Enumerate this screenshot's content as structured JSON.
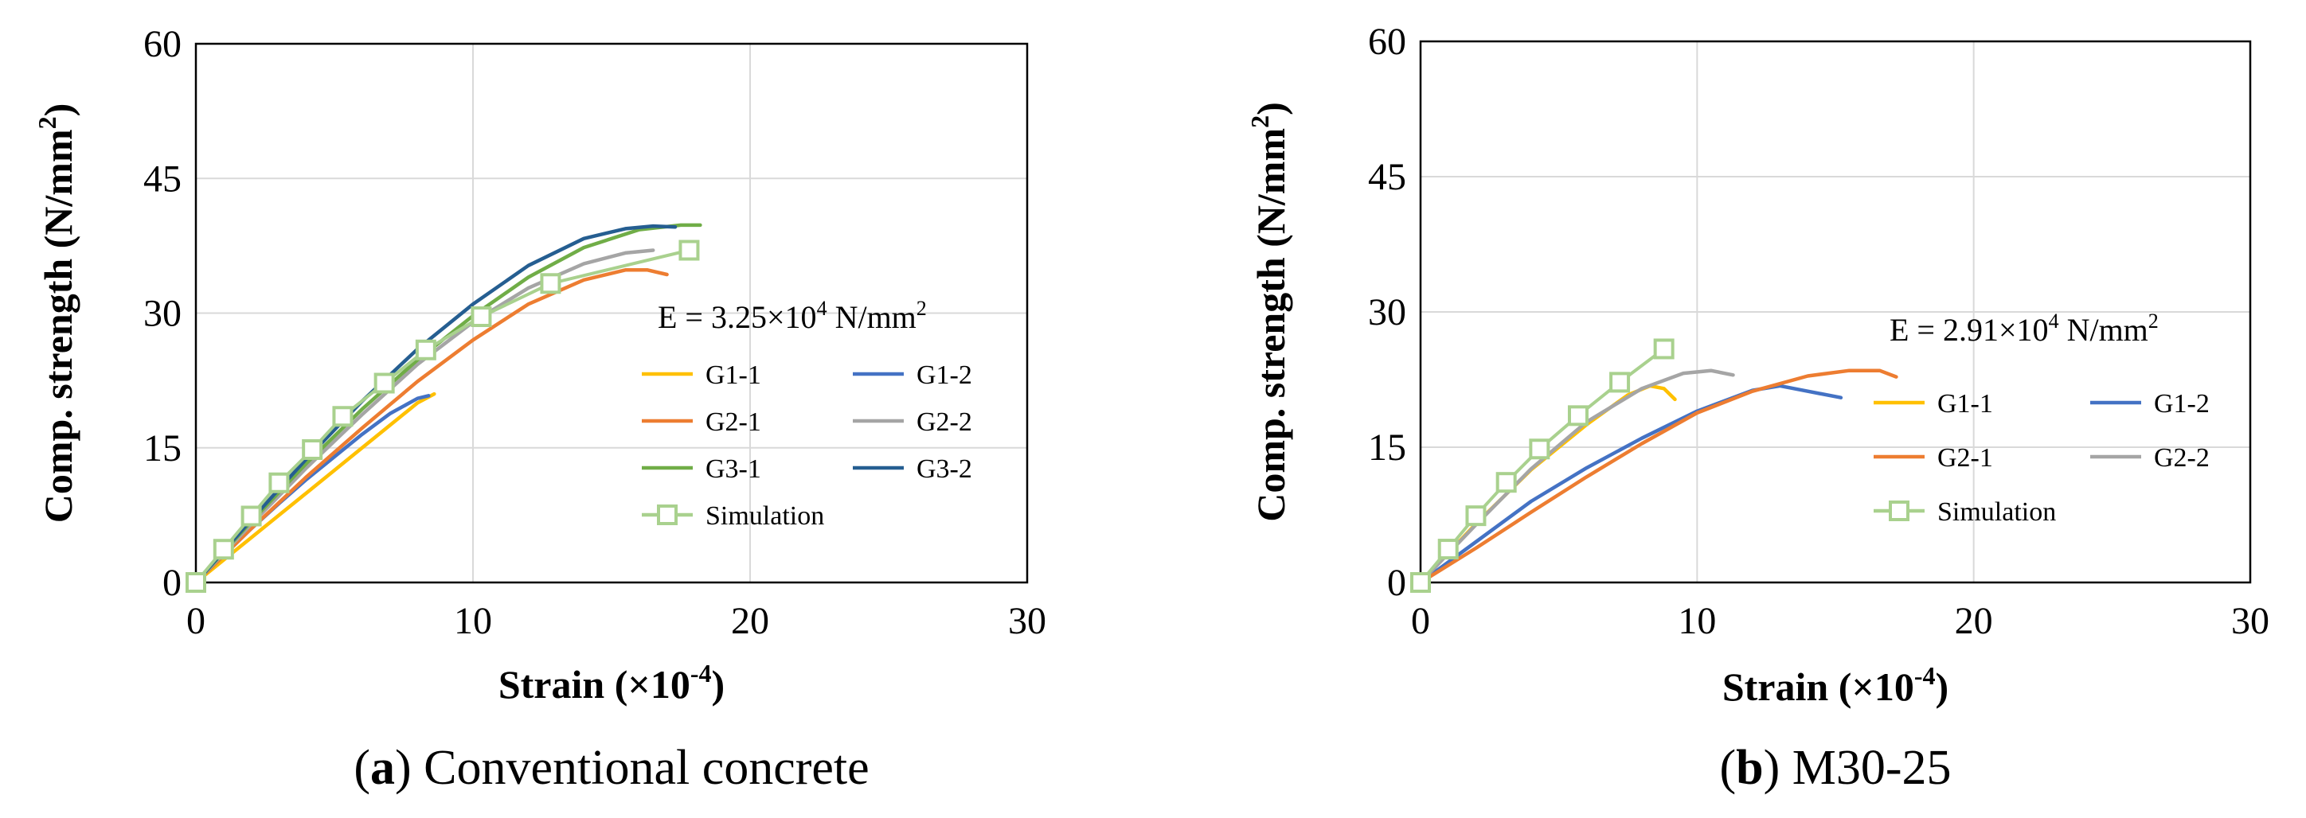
{
  "chart_data": [
    {
      "type": "line",
      "panel_letter": "a",
      "caption_text": " Conventional concrete",
      "xlabel": "Strain (×10",
      "xlabel_exp": "-4",
      "xlabel_tail": ")",
      "ylabel": "Comp. strength (N/mm",
      "ylabel_exp": "2",
      "ylabel_tail": ")",
      "xlim": [
        0,
        30
      ],
      "ylim": [
        0,
        60
      ],
      "xticks": [
        0,
        10,
        20,
        30
      ],
      "yticks": [
        0,
        15,
        30,
        45,
        60
      ],
      "xtick_labels": [
        "0",
        "10",
        "20",
        "30"
      ],
      "ytick_labels": [
        "0",
        "15",
        "30",
        "45",
        "60"
      ],
      "grid": true,
      "legend_position": "right, below annotation",
      "annotation": {
        "prefix": "E = 3.25×10",
        "exp": "4",
        "suffix": " N/mm",
        "unit_exp": "2"
      },
      "series": [
        {
          "name": "G1-1",
          "color": "#FFC000",
          "marker": "none",
          "x": [
            0,
            1,
            2,
            3,
            4,
            5,
            6,
            7,
            8,
            8.6
          ],
          "y": [
            0,
            2.5,
            5,
            7.5,
            10,
            12.5,
            15,
            17.5,
            20,
            21
          ]
        },
        {
          "name": "G1-2",
          "color": "#4472C4",
          "marker": "none",
          "x": [
            0,
            1,
            2,
            3,
            4,
            5,
            6,
            7,
            8,
            8.4
          ],
          "y": [
            0,
            3,
            6,
            8.8,
            11.5,
            14,
            16.5,
            18.8,
            20.5,
            20.8
          ]
        },
        {
          "name": "G2-1",
          "color": "#ED7D31",
          "marker": "none",
          "x": [
            0,
            2,
            4,
            6,
            8,
            10,
            12,
            14,
            15.5,
            16.3,
            17
          ],
          "y": [
            0,
            6,
            11.8,
            17.2,
            22.4,
            27,
            31,
            33.7,
            34.8,
            34.8,
            34.3
          ]
        },
        {
          "name": "G2-2",
          "color": "#A5A5A5",
          "marker": "none",
          "x": [
            0,
            2,
            4,
            6,
            8,
            10,
            12,
            14,
            15.5,
            16.5
          ],
          "y": [
            0,
            6.5,
            12.8,
            18.7,
            24.3,
            29,
            32.8,
            35.5,
            36.7,
            37
          ]
        },
        {
          "name": "G3-1",
          "color": "#70AD47",
          "marker": "none",
          "x": [
            0,
            2,
            4,
            6,
            8,
            10,
            12,
            14,
            16,
            17.5,
            18.2
          ],
          "y": [
            0,
            6.8,
            13.3,
            19.3,
            24.8,
            29.7,
            34,
            37.3,
            39.3,
            39.8,
            39.8
          ]
        },
        {
          "name": "G3-2",
          "color": "#255E91",
          "marker": "none",
          "x": [
            0,
            2,
            4,
            6,
            8,
            10,
            12,
            14,
            15.5,
            16.5,
            17.3
          ],
          "y": [
            0,
            7,
            13.8,
            20.2,
            26,
            31,
            35.3,
            38.3,
            39.4,
            39.7,
            39.6
          ]
        },
        {
          "name": "Simulation",
          "color": "#A9D18E",
          "marker": "square",
          "x": [
            0,
            1,
            2,
            3,
            4.2,
            5.3,
            6.8,
            8.3,
            10.3,
            12.8,
            17.8
          ],
          "y": [
            0,
            3.7,
            7.4,
            11.1,
            14.8,
            18.5,
            22.2,
            25.9,
            29.6,
            33.3,
            37
          ]
        }
      ]
    },
    {
      "type": "line",
      "panel_letter": "b",
      "caption_text": " M30-25",
      "xlabel": "Strain (×10",
      "xlabel_exp": "-4",
      "xlabel_tail": ")",
      "ylabel": "Comp. strength (N/mm",
      "ylabel_exp": "2",
      "ylabel_tail": ")",
      "xlim": [
        0,
        30
      ],
      "ylim": [
        0,
        60
      ],
      "xticks": [
        0,
        10,
        20,
        30
      ],
      "yticks": [
        0,
        15,
        30,
        45,
        60
      ],
      "xtick_labels": [
        "0",
        "10",
        "20",
        "30"
      ],
      "ytick_labels": [
        "0",
        "15",
        "30",
        "45",
        "60"
      ],
      "grid": true,
      "legend_position": "right, below annotation",
      "annotation": {
        "prefix": "E = 2.91×10",
        "exp": "4",
        "suffix": " N/mm",
        "unit_exp": "2"
      },
      "series": [
        {
          "name": "G1-1",
          "color": "#FFC000",
          "marker": "none",
          "x": [
            0,
            2,
            4,
            6,
            7.5,
            8.3,
            8.8,
            9.2
          ],
          "y": [
            0,
            6.5,
            12.5,
            17.5,
            20.8,
            21.8,
            21.5,
            20.3
          ]
        },
        {
          "name": "G1-2",
          "color": "#4472C4",
          "marker": "none",
          "x": [
            0,
            2,
            4,
            6,
            8,
            10,
            12,
            13,
            14,
            15.2
          ],
          "y": [
            0,
            4.5,
            9,
            12.7,
            16,
            19,
            21.3,
            21.8,
            21.2,
            20.5
          ]
        },
        {
          "name": "G2-1",
          "color": "#ED7D31",
          "marker": "none",
          "x": [
            0,
            2,
            4,
            6,
            8,
            10,
            12,
            14,
            15.5,
            16.6,
            17.2
          ],
          "y": [
            0,
            3.8,
            7.8,
            11.7,
            15.4,
            18.8,
            21.2,
            22.9,
            23.5,
            23.5,
            22.8
          ]
        },
        {
          "name": "G2-2",
          "color": "#A5A5A5",
          "marker": "none",
          "x": [
            0,
            2,
            4,
            6,
            8,
            9.5,
            10.5,
            11.3
          ],
          "y": [
            0,
            6.4,
            12.6,
            17.8,
            21.5,
            23.2,
            23.5,
            23
          ]
        },
        {
          "name": "Simulation",
          "color": "#A9D18E",
          "marker": "square",
          "x": [
            0,
            1,
            2,
            3.1,
            4.3,
            5.7,
            7.2,
            8.8
          ],
          "y": [
            0,
            3.7,
            7.4,
            11.1,
            14.8,
            18.5,
            22.2,
            25.9
          ]
        }
      ]
    }
  ]
}
